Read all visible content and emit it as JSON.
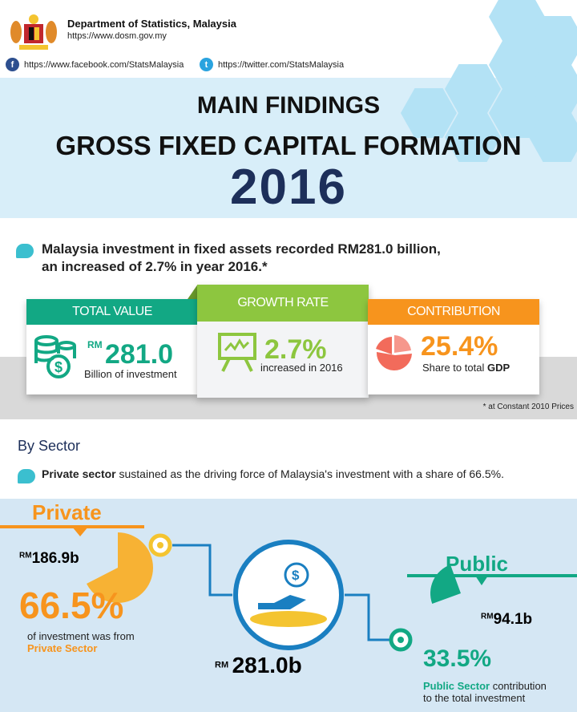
{
  "header": {
    "org": "Department of Statistics, Malaysia",
    "url": "https://www.dosm.gov.my",
    "facebook": "https://www.facebook.com/StatsMalaysia",
    "twitter": "https://twitter.com/StatsMalaysia"
  },
  "title": {
    "line1": "MAIN FINDINGS",
    "line2": "GROSS FIXED CAPITAL FORMATION",
    "year": "2016"
  },
  "intro": {
    "line1": "Malaysia investment in fixed assets recorded RM281.0 billion,",
    "line2": "an increased of 2.7% in year 2016.*"
  },
  "cards": [
    {
      "title": "TOTAL VALUE",
      "prefix": "RM",
      "value": "281.0",
      "caption": "Billion of investment",
      "color": "#12a884"
    },
    {
      "title": "GROWTH RATE",
      "value": "2.7%",
      "caption": "increased in 2016",
      "color": "#8dc63f"
    },
    {
      "title": "CONTRIBUTION",
      "value": "25.4%",
      "caption": "Share to total ",
      "caption_bold": "GDP",
      "color": "#f7941d"
    }
  ],
  "note": "* at Constant 2010 Prices",
  "sector": {
    "heading": "By Sector",
    "text_bold": "Private sector",
    "text": " sustained as the driving force of Malaysia's investment with a share of 66.5%."
  },
  "private": {
    "label": "Private",
    "prefix": "RM",
    "value": "186.9b",
    "share": "66.5%",
    "desc": "of investment was from",
    "desc_bold": "Private Sector",
    "share_value": 66.5
  },
  "public": {
    "label": "Public",
    "prefix": "RM",
    "value": "94.1b",
    "share": "33.5%",
    "desc_bold": "Public Sector",
    "desc": " contribution",
    "desc2": "to the total investment",
    "share_value": 33.5
  },
  "total": {
    "prefix": "RM",
    "value": "281.0b"
  }
}
